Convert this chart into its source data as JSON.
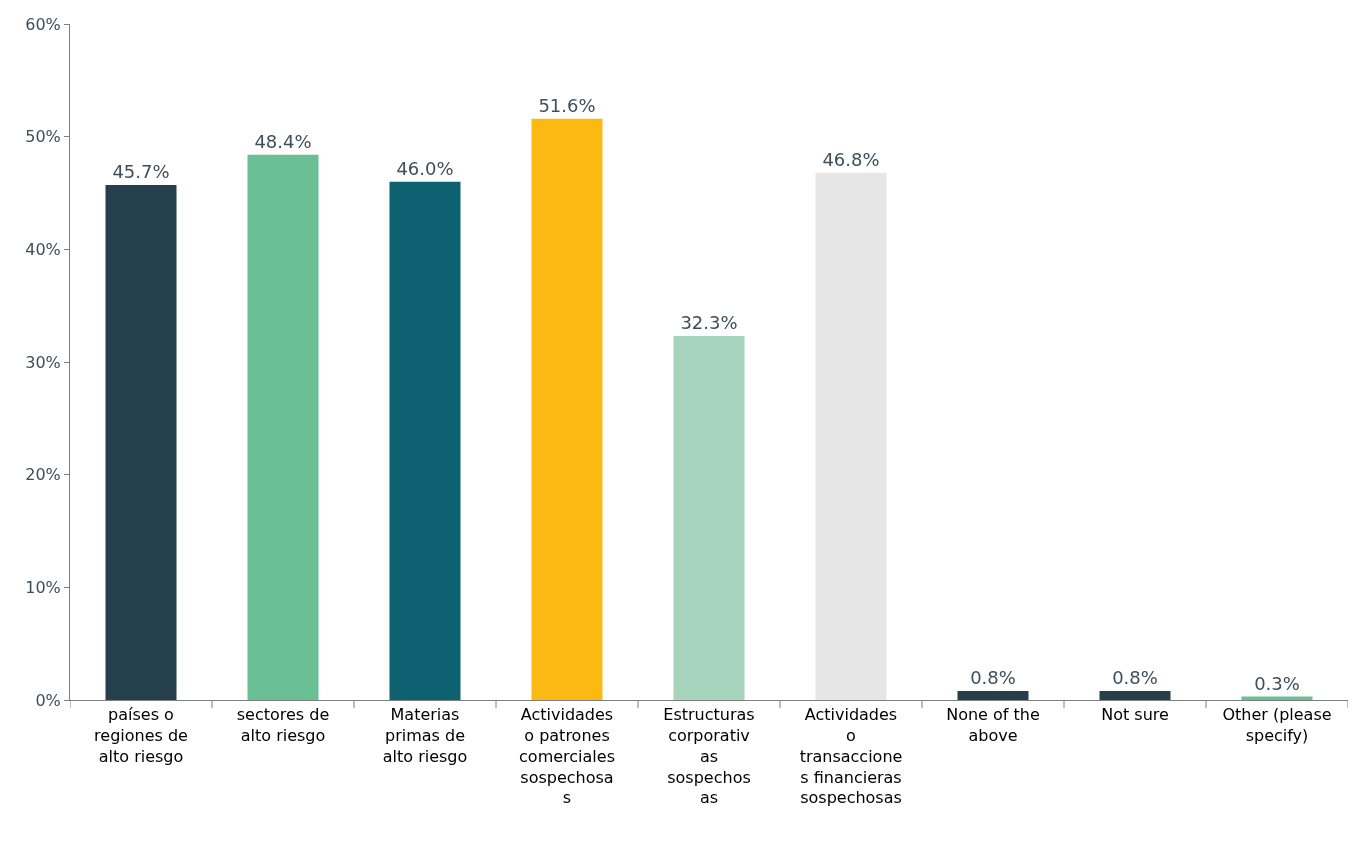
{
  "chart_data": {
    "type": "bar",
    "categories": [
      "países o\nregiones de\nalto riesgo",
      "sectores de\nalto riesgo",
      "Materias\nprimas de\nalto riesgo",
      "Actividades\no patrones\ncomerciales\nsospechosa\ns",
      "Estructuras\ncorporativ\nas\nsospechos\nas",
      "Actividades\no\ntransaccione\ns financieras\nsospechosas",
      "None of the\nabove",
      "Not sure",
      "Other (please\nspecify)"
    ],
    "values": [
      45.7,
      48.4,
      46.0,
      51.6,
      32.3,
      46.8,
      0.8,
      0.8,
      0.3
    ],
    "colors": [
      "#263f4d",
      "#6abf95",
      "#0e6170",
      "#fcb813",
      "#a6d4bc",
      "#e6e6e6",
      "#263f4d",
      "#263f4d",
      "#6abf95"
    ],
    "value_labels": [
      "45.7%",
      "48.4%",
      "46.0%",
      "51.6%",
      "32.3%",
      "46.8%",
      "0.8%",
      "0.8%",
      "0.3%"
    ],
    "ylim": [
      0,
      60
    ],
    "yticks": [
      {
        "value": 0,
        "label": "0%"
      },
      {
        "value": 10,
        "label": "10%"
      },
      {
        "value": 20,
        "label": "20%"
      },
      {
        "value": 30,
        "label": "30%"
      },
      {
        "value": 40,
        "label": "40%"
      },
      {
        "value": 50,
        "label": "50%"
      },
      {
        "value": 60,
        "label": "60%"
      }
    ],
    "legend": false
  }
}
